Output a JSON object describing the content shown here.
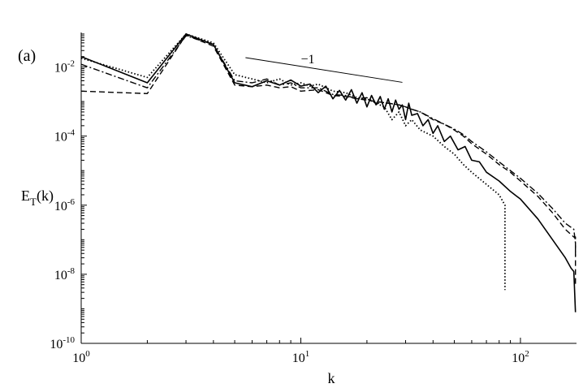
{
  "panel_label": "(a)",
  "chart_data": {
    "type": "line",
    "title": "",
    "xlabel": "k",
    "ylabel": {
      "base": "E",
      "sub": "T",
      "tail": "(k)"
    },
    "xscale": "log",
    "yscale": "log",
    "xlim": [
      1,
      180
    ],
    "ylim": [
      1e-10,
      0.1
    ],
    "grid": false,
    "legend": "none",
    "x_ticks": [
      {
        "value": 1,
        "base": "10",
        "exp": "0"
      },
      {
        "value": 10,
        "base": "10",
        "exp": "1"
      },
      {
        "value": 100,
        "base": "10",
        "exp": "2"
      }
    ],
    "y_ticks": [
      {
        "value": 0.01,
        "base": "10",
        "exp": "-2"
      },
      {
        "value": 0.0001,
        "base": "10",
        "exp": "-4"
      },
      {
        "value": 1e-06,
        "base": "10",
        "exp": "-6"
      },
      {
        "value": 1e-08,
        "base": "10",
        "exp": "-8"
      },
      {
        "value": 1e-10,
        "base": "10",
        "exp": "-10"
      }
    ],
    "reference_line": {
      "label": "−1",
      "slope": -1,
      "x": [
        5.6,
        29
      ],
      "y": [
        0.0187,
        0.0036
      ]
    },
    "series": [
      {
        "style": "solid",
        "points": [
          [
            1,
            0.02
          ],
          [
            2,
            0.0035
          ],
          [
            3,
            0.09
          ],
          [
            4,
            0.045
          ],
          [
            5,
            0.0035
          ],
          [
            6,
            0.0027
          ],
          [
            7,
            0.004
          ],
          [
            8,
            0.003
          ],
          [
            9,
            0.0042
          ],
          [
            10,
            0.0028
          ],
          [
            11,
            0.0032
          ],
          [
            12,
            0.0018
          ],
          [
            13,
            0.0028
          ],
          [
            14,
            0.0012
          ],
          [
            15,
            0.0021
          ],
          [
            16,
            0.0011
          ],
          [
            17,
            0.0022
          ],
          [
            18,
            0.0009
          ],
          [
            19,
            0.0018
          ],
          [
            20,
            0.0007
          ],
          [
            21,
            0.0015
          ],
          [
            22,
            0.0008
          ],
          [
            23,
            0.0014
          ],
          [
            24,
            0.0006
          ],
          [
            25,
            0.0012
          ],
          [
            26,
            0.0005
          ],
          [
            27,
            0.0011
          ],
          [
            28,
            0.0006
          ],
          [
            29,
            0.0008
          ],
          [
            30,
            0.0003
          ],
          [
            31,
            0.0009
          ],
          [
            32,
            0.0004
          ],
          [
            34,
            0.00045
          ],
          [
            36,
            0.0002
          ],
          [
            38,
            0.0003
          ],
          [
            40,
            0.00012
          ],
          [
            42,
            0.0002
          ],
          [
            45,
            7e-05
          ],
          [
            48,
            0.0001
          ],
          [
            52,
            4e-05
          ],
          [
            56,
            5e-05
          ],
          [
            60,
            2e-05
          ],
          [
            65,
            1.8e-05
          ],
          [
            70,
            9e-06
          ],
          [
            80,
            5e-06
          ],
          [
            90,
            2.5e-06
          ],
          [
            100,
            1.5e-06
          ],
          [
            120,
            4e-07
          ],
          [
            140,
            1e-07
          ],
          [
            160,
            3e-08
          ],
          [
            170,
            1.5e-08
          ],
          [
            175,
            1.2e-08
          ],
          [
            178,
            8e-10
          ]
        ]
      },
      {
        "style": "dashed",
        "points": [
          [
            1,
            0.002
          ],
          [
            2,
            0.0017
          ],
          [
            3,
            0.085
          ],
          [
            4,
            0.04
          ],
          [
            5,
            0.003
          ],
          [
            6,
            0.0027
          ],
          [
            7,
            0.003
          ],
          [
            8,
            0.0025
          ],
          [
            9,
            0.0027
          ],
          [
            10,
            0.002
          ],
          [
            12,
            0.0022
          ],
          [
            14,
            0.0015
          ],
          [
            16,
            0.0014
          ],
          [
            18,
            0.0012
          ],
          [
            20,
            0.0011
          ],
          [
            22,
            0.001
          ],
          [
            25,
            0.0009
          ],
          [
            28,
            0.0008
          ],
          [
            30,
            0.0007
          ],
          [
            32,
            0.0006
          ],
          [
            35,
            0.0005
          ],
          [
            40,
            0.0003
          ],
          [
            45,
            0.00022
          ],
          [
            50,
            0.00015
          ],
          [
            55,
            0.0001
          ],
          [
            60,
            6e-05
          ],
          [
            70,
            3e-05
          ],
          [
            80,
            1.5e-05
          ],
          [
            90,
            9e-06
          ],
          [
            100,
            5e-06
          ],
          [
            120,
            1.8e-06
          ],
          [
            140,
            6e-07
          ],
          [
            160,
            2e-07
          ],
          [
            175,
            1.2e-07
          ],
          [
            178,
            1.2e-07
          ],
          [
            178,
            5e-09
          ]
        ]
      },
      {
        "style": "dashdot",
        "points": [
          [
            1,
            0.012
          ],
          [
            2,
            0.0025
          ],
          [
            3,
            0.08
          ],
          [
            4,
            0.045
          ],
          [
            5,
            0.004
          ],
          [
            6,
            0.0035
          ],
          [
            7,
            0.0045
          ],
          [
            8,
            0.003
          ],
          [
            9,
            0.0035
          ],
          [
            10,
            0.0025
          ],
          [
            12,
            0.0025
          ],
          [
            14,
            0.0016
          ],
          [
            16,
            0.0015
          ],
          [
            18,
            0.0012
          ],
          [
            20,
            0.0013
          ],
          [
            22,
            0.0009
          ],
          [
            25,
            0.0009
          ],
          [
            28,
            0.0008
          ],
          [
            30,
            0.0007
          ],
          [
            32,
            0.0006
          ],
          [
            35,
            0.0005
          ],
          [
            40,
            0.00032
          ],
          [
            45,
            0.00022
          ],
          [
            50,
            0.00016
          ],
          [
            55,
            0.00011
          ],
          [
            60,
            7e-05
          ],
          [
            70,
            3.5e-05
          ],
          [
            80,
            1.8e-05
          ],
          [
            90,
            1e-05
          ],
          [
            100,
            6e-06
          ],
          [
            120,
            2.2e-06
          ],
          [
            140,
            8e-07
          ],
          [
            160,
            3e-07
          ],
          [
            175,
            2e-07
          ],
          [
            178,
            8e-08
          ],
          [
            178,
            3e-08
          ]
        ]
      },
      {
        "style": "dotted",
        "points": [
          [
            1,
            0.018
          ],
          [
            2,
            0.005
          ],
          [
            3,
            0.09
          ],
          [
            4,
            0.05
          ],
          [
            5,
            0.006
          ],
          [
            6,
            0.0045
          ],
          [
            7,
            0.0035
          ],
          [
            8,
            0.0045
          ],
          [
            9,
            0.003
          ],
          [
            10,
            0.0035
          ],
          [
            11,
            0.0028
          ],
          [
            12,
            0.0032
          ],
          [
            14,
            0.002
          ],
          [
            16,
            0.0018
          ],
          [
            18,
            0.0013
          ],
          [
            20,
            0.0012
          ],
          [
            22,
            0.0009
          ],
          [
            24,
            0.0007
          ],
          [
            26,
            0.0003
          ],
          [
            28,
            0.0005
          ],
          [
            30,
            0.0002
          ],
          [
            32,
            0.0003
          ],
          [
            35,
            0.00015
          ],
          [
            40,
            0.0001
          ],
          [
            45,
            5e-05
          ],
          [
            50,
            3e-05
          ],
          [
            55,
            1.5e-05
          ],
          [
            60,
            9e-06
          ],
          [
            70,
            4e-06
          ],
          [
            80,
            2e-06
          ],
          [
            85,
            1e-06
          ],
          [
            85,
            3.5e-09
          ]
        ]
      }
    ]
  }
}
